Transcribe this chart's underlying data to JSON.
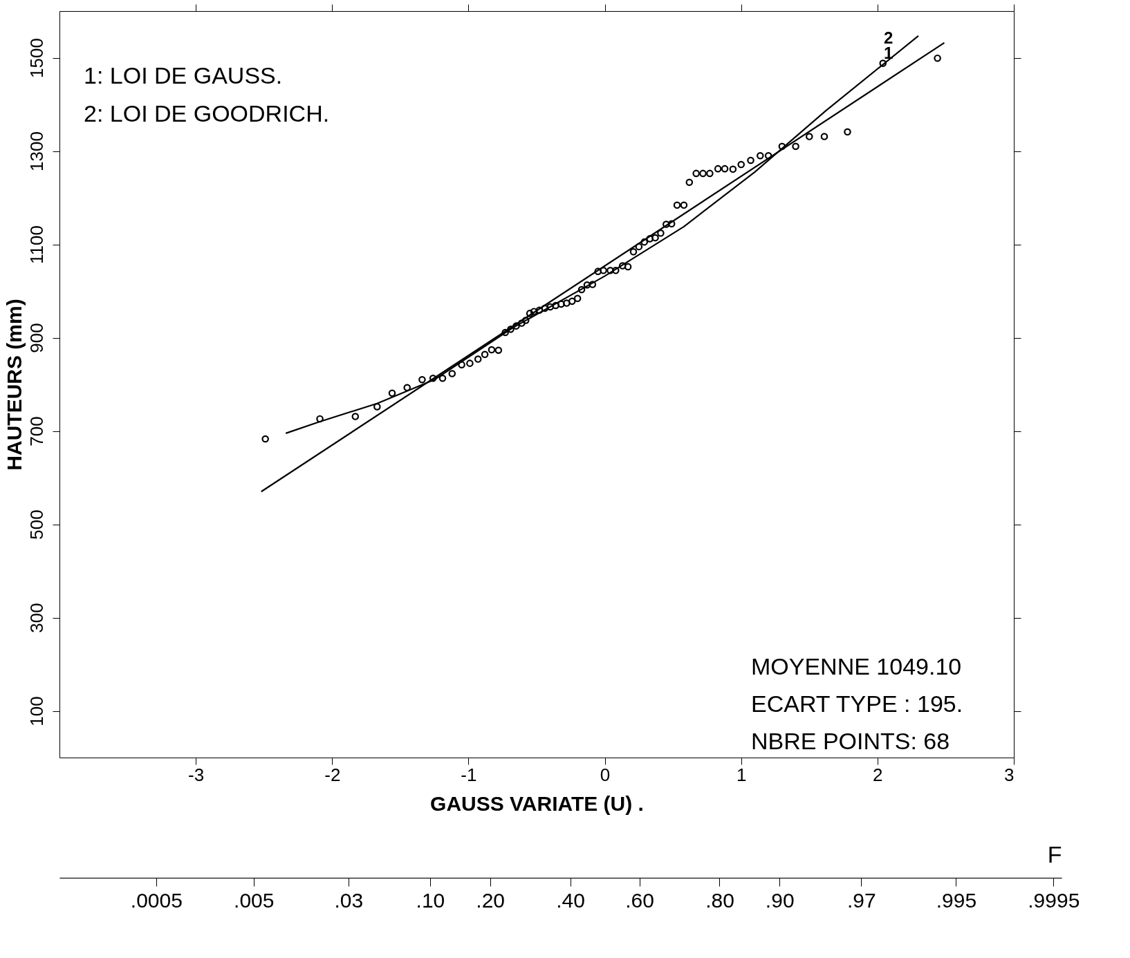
{
  "chart_data": {
    "type": "scatter",
    "xlabel": "GAUSS VARIATE (U) .",
    "ylabel": "HAUTEURS (mm)",
    "xlim": [
      -4,
      3
    ],
    "xticks": [
      -3,
      -2,
      -1,
      0,
      1,
      2,
      3
    ],
    "ylim": [
      0,
      1600
    ],
    "yticks": [
      100,
      300,
      500,
      700,
      900,
      1100,
      1300,
      1500
    ],
    "x2label": "F",
    "grid": false,
    "series": [
      {
        "marker": "circle",
        "color": "#000000",
        "x": [
          -2.49,
          -2.09,
          -1.83,
          -1.67,
          -1.56,
          -1.45,
          -1.34,
          -1.26,
          -1.19,
          -1.12,
          -1.05,
          -0.99,
          -0.93,
          -0.88,
          -0.83,
          -0.78,
          -0.73,
          -0.69,
          -0.65,
          -0.61,
          -0.58,
          -0.55,
          -0.52,
          -0.48,
          -0.44,
          -0.4,
          -0.36,
          -0.32,
          -0.28,
          -0.24,
          -0.2,
          -0.17,
          -0.13,
          -0.09,
          -0.05,
          -0.01,
          0.04,
          0.08,
          0.13,
          0.17,
          0.21,
          0.25,
          0.29,
          0.33,
          0.37,
          0.41,
          0.45,
          0.49,
          0.53,
          0.58,
          0.62,
          0.67,
          0.72,
          0.77,
          0.83,
          0.88,
          0.94,
          1.0,
          1.07,
          1.14,
          1.2,
          1.3,
          1.4,
          1.5,
          1.61,
          1.78,
          2.04,
          2.44
        ],
        "values": [
          683,
          726,
          731,
          752,
          781,
          793,
          810,
          813,
          813,
          823,
          842,
          845,
          854,
          864,
          874,
          873,
          911,
          918,
          925,
          931,
          937,
          952,
          956,
          959,
          963,
          966,
          969,
          972,
          974,
          978,
          984,
          1003,
          1013,
          1014,
          1042,
          1044,
          1044,
          1044,
          1054,
          1052,
          1084,
          1095,
          1105,
          1112,
          1114,
          1124,
          1143,
          1144,
          1184,
          1184,
          1233,
          1252,
          1252,
          1252,
          1262,
          1262,
          1261,
          1271,
          1280,
          1290,
          1290,
          1310,
          1310,
          1331,
          1331,
          1341,
          1488,
          1499
        ]
      },
      {
        "type": "line",
        "color": "#000000",
        "x": [
          -2.52,
          2.49
        ],
        "values": [
          570,
          1532
        ]
      },
      {
        "type": "line",
        "color": "#000000",
        "x": [
          -2.34,
          -2.09,
          -1.67,
          -1.25,
          -0.67,
          0.0,
          0.58,
          1.1,
          1.62,
          2.3
        ],
        "values": [
          695,
          720,
          759,
          810,
          922,
          1032,
          1138,
          1255,
          1386,
          1547
        ]
      }
    ],
    "annotations": [
      "1: LOI DE GAUSS.",
      "2: LOI DE GOODRICH.",
      "MOYENNE   1049.10",
      "ECART TYPE :  195.",
      "NBRE POINTS: 68",
      "2",
      "1",
      ".0005",
      ".005",
      ".03",
      ".10",
      ".20",
      ".40",
      ".60",
      ".80",
      ".90",
      ".97",
      ".995",
      ".9995"
    ]
  }
}
